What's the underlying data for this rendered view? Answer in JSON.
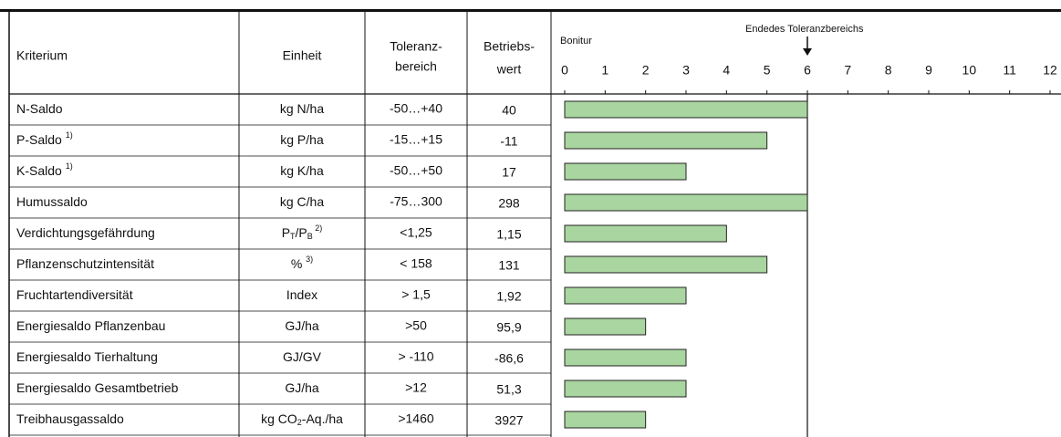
{
  "table": {
    "headers": [
      [
        "Kriterium"
      ],
      [
        "Einheit"
      ],
      [
        "Toleranz-",
        "bereich"
      ],
      [
        "Betriebs-",
        "wert"
      ]
    ],
    "rows": [
      {
        "kriterium": [
          {
            "text": "N-Saldo"
          }
        ],
        "einheit": [
          {
            "text": "kg N/ha"
          }
        ],
        "toleranz": "-50…+40",
        "wert": "40",
        "bonitur": 6
      },
      {
        "kriterium": [
          {
            "text": "P-Saldo "
          },
          {
            "text": "1)",
            "style": "sup"
          }
        ],
        "einheit": [
          {
            "text": "kg P/ha"
          }
        ],
        "toleranz": "-15…+15",
        "wert": "-11",
        "bonitur": 5
      },
      {
        "kriterium": [
          {
            "text": "K-Saldo "
          },
          {
            "text": "1)",
            "style": "sup"
          }
        ],
        "einheit": [
          {
            "text": "kg K/ha"
          }
        ],
        "toleranz": "-50…+50",
        "wert": "17",
        "bonitur": 3
      },
      {
        "kriterium": [
          {
            "text": "Humussaldo"
          }
        ],
        "einheit": [
          {
            "text": "kg C/ha"
          }
        ],
        "toleranz": "-75…300",
        "wert": "298",
        "bonitur": 6
      },
      {
        "kriterium": [
          {
            "text": "Verdichtungsgefährdung"
          }
        ],
        "einheit": [
          {
            "text": "P"
          },
          {
            "text": "T",
            "style": "sub"
          },
          {
            "text": "/P"
          },
          {
            "text": "B",
            "style": "sub"
          },
          {
            "text": " 2)",
            "style": "sup"
          }
        ],
        "toleranz": "<1,25",
        "wert": "1,15",
        "bonitur": 4
      },
      {
        "kriterium": [
          {
            "text": "Pflanzenschutzintensität"
          }
        ],
        "einheit": [
          {
            "text": "% "
          },
          {
            "text": "3)",
            "style": "sup"
          }
        ],
        "toleranz": "< 158",
        "wert": "131",
        "bonitur": 5
      },
      {
        "kriterium": [
          {
            "text": "Fruchtartendiversität"
          }
        ],
        "einheit": [
          {
            "text": "Index"
          }
        ],
        "toleranz": "> 1,5",
        "wert": "1,92",
        "bonitur": 3
      },
      {
        "kriterium": [
          {
            "text": "Energiesaldo Pflanzenbau"
          }
        ],
        "einheit": [
          {
            "text": "GJ/ha"
          }
        ],
        "toleranz": ">50",
        "wert": "95,9",
        "bonitur": 2
      },
      {
        "kriterium": [
          {
            "text": "Energiesaldo Tierhaltung"
          }
        ],
        "einheit": [
          {
            "text": "GJ/GV"
          }
        ],
        "toleranz": "> -110",
        "wert": "-86,6",
        "bonitur": 3
      },
      {
        "kriterium": [
          {
            "text": "Energiesaldo Gesamtbetrieb"
          }
        ],
        "einheit": [
          {
            "text": "GJ/ha"
          }
        ],
        "toleranz": ">12",
        "wert": "51,3",
        "bonitur": 3
      },
      {
        "kriterium": [
          {
            "text": "Treibhausgassaldo"
          }
        ],
        "einheit": [
          {
            "text": "kg CO"
          },
          {
            "text": "2",
            "style": "sub"
          },
          {
            "text": "-Aq./ha"
          }
        ],
        "toleranz": ">1460",
        "wert": "3927",
        "bonitur": 2
      }
    ]
  },
  "chart": {
    "axis_label": "Bonitur",
    "annotation": "Endedes Toleranzbereichs",
    "annotation_value": 6,
    "xlim": [
      0,
      12
    ],
    "xticks": [
      0,
      1,
      2,
      3,
      4,
      5,
      6,
      7,
      8,
      9,
      10,
      11,
      12
    ],
    "bar_color": "#a9d5a0"
  }
}
